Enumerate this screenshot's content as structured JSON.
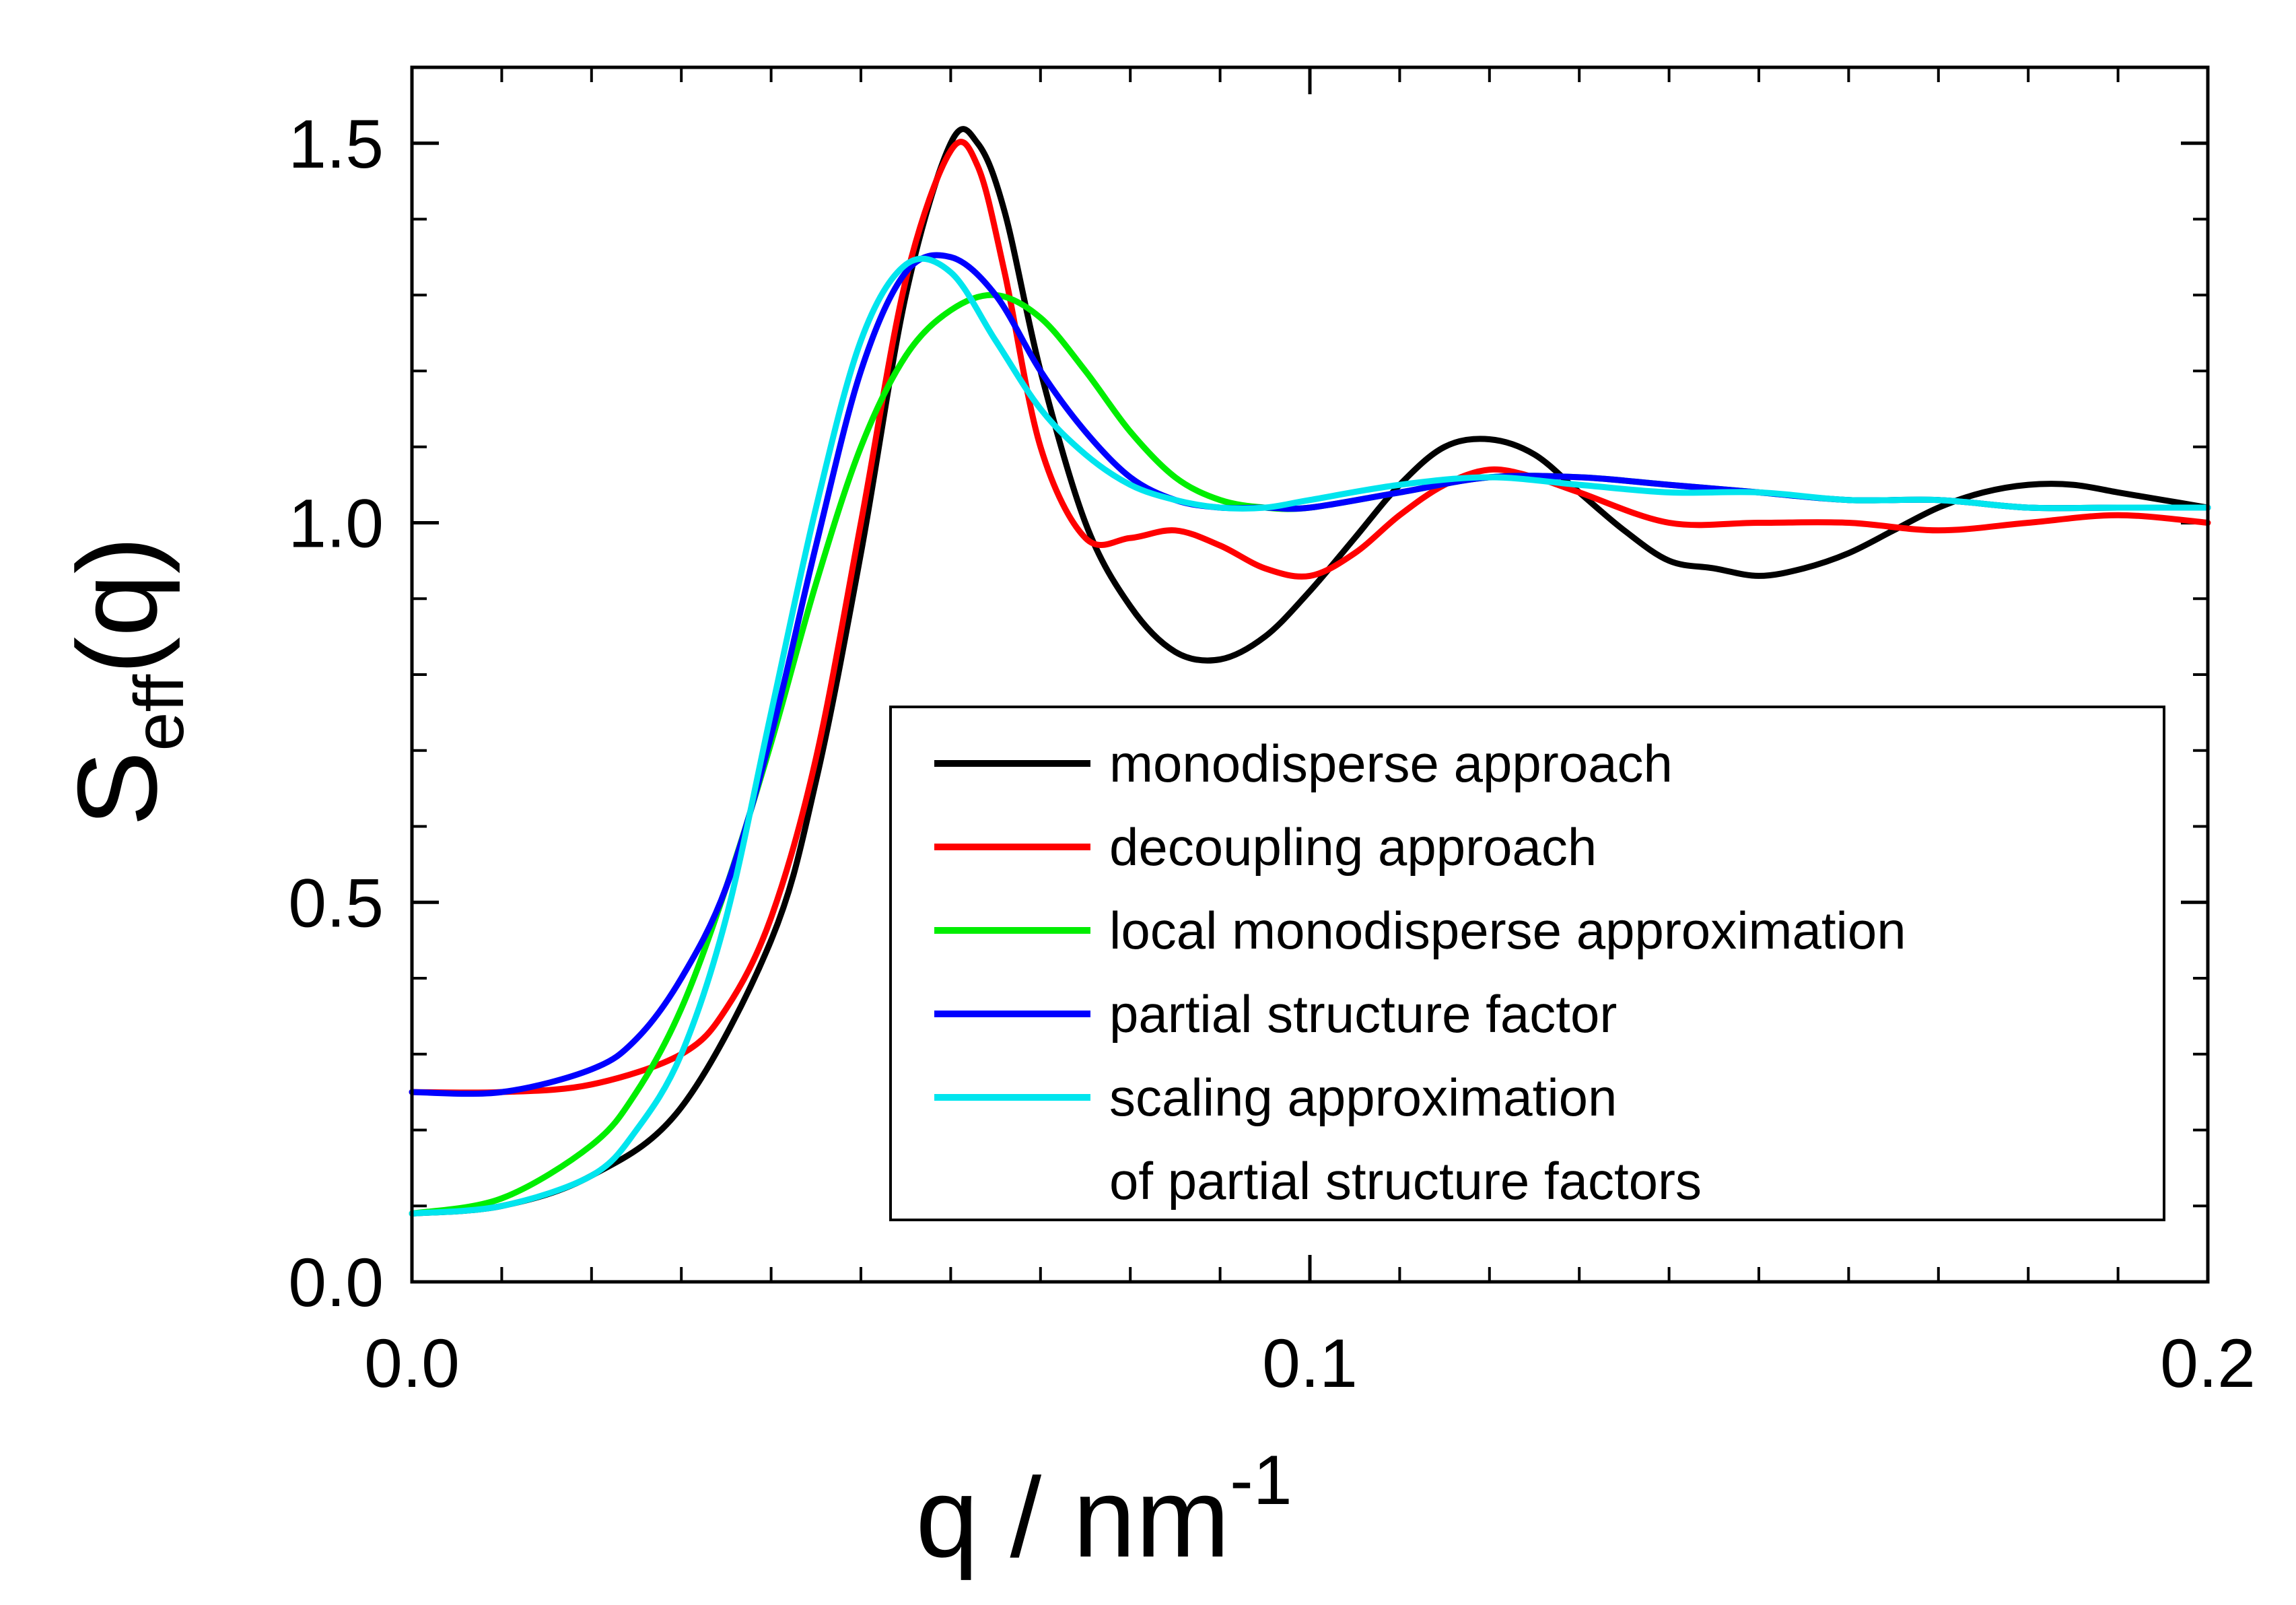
{
  "chart_data": {
    "type": "line",
    "xlabel": {
      "main": "q / nm",
      "superscript": "-1"
    },
    "ylabel": {
      "main": "S",
      "subscript": "eff",
      "suffix": "(q)"
    },
    "xlim": [
      0.0,
      0.2
    ],
    "ylim": [
      0.0,
      1.6
    ],
    "x_ticks": [
      0.0,
      0.1,
      0.2
    ],
    "x_tick_labels": [
      "0.0",
      "0.1",
      "0.2"
    ],
    "x_minor_step": 0.01,
    "y_ticks": [
      0.0,
      0.5,
      1.0,
      1.5
    ],
    "y_tick_labels": [
      "0.0",
      "0.5",
      "1.0",
      "1.5"
    ],
    "y_minor_step": 0.1,
    "grid": false,
    "legend_position": "lower-right",
    "series": [
      {
        "name": "monodisperse approach",
        "color": "#000000",
        "x": [
          0.0,
          0.01,
          0.02,
          0.03,
          0.04,
          0.045,
          0.05,
          0.055,
          0.06,
          0.063,
          0.066,
          0.07,
          0.075,
          0.08,
          0.085,
          0.09,
          0.095,
          0.1,
          0.105,
          0.11,
          0.115,
          0.12,
          0.125,
          0.13,
          0.135,
          0.14,
          0.145,
          0.15,
          0.155,
          0.16,
          0.165,
          0.17,
          0.175,
          0.18,
          0.185,
          0.19,
          0.195,
          0.2
        ],
        "y": [
          0.09,
          0.1,
          0.14,
          0.23,
          0.45,
          0.66,
          0.96,
          1.3,
          1.5,
          1.5,
          1.41,
          1.2,
          1.0,
          0.89,
          0.83,
          0.82,
          0.85,
          0.91,
          0.98,
          1.05,
          1.1,
          1.11,
          1.09,
          1.04,
          0.99,
          0.95,
          0.94,
          0.93,
          0.94,
          0.96,
          0.99,
          1.02,
          1.04,
          1.05,
          1.05,
          1.04,
          1.03,
          1.02
        ]
      },
      {
        "name": "decoupling approach",
        "color": "#ff0000",
        "x": [
          0.0,
          0.01,
          0.02,
          0.03,
          0.035,
          0.04,
          0.045,
          0.05,
          0.055,
          0.06,
          0.063,
          0.066,
          0.07,
          0.075,
          0.08,
          0.085,
          0.09,
          0.095,
          0.1,
          0.105,
          0.11,
          0.115,
          0.12,
          0.125,
          0.13,
          0.14,
          0.15,
          0.16,
          0.17,
          0.18,
          0.19,
          0.2
        ],
        "y": [
          0.25,
          0.25,
          0.26,
          0.3,
          0.36,
          0.48,
          0.69,
          1.0,
          1.32,
          1.49,
          1.47,
          1.33,
          1.1,
          0.98,
          0.98,
          0.99,
          0.97,
          0.94,
          0.93,
          0.96,
          1.01,
          1.05,
          1.07,
          1.06,
          1.04,
          1.0,
          1.0,
          1.0,
          0.99,
          1.0,
          1.01,
          1.0
        ]
      },
      {
        "name": "local monodisperse approximation",
        "color": "#00ee00",
        "x": [
          0.0,
          0.01,
          0.02,
          0.025,
          0.03,
          0.035,
          0.04,
          0.045,
          0.05,
          0.055,
          0.06,
          0.065,
          0.07,
          0.075,
          0.08,
          0.085,
          0.09,
          0.095,
          0.1,
          0.11,
          0.12,
          0.13,
          0.14,
          0.15,
          0.16,
          0.17,
          0.18,
          0.19,
          0.2
        ],
        "y": [
          0.09,
          0.11,
          0.18,
          0.25,
          0.36,
          0.52,
          0.71,
          0.92,
          1.1,
          1.22,
          1.28,
          1.3,
          1.27,
          1.2,
          1.12,
          1.06,
          1.03,
          1.02,
          1.02,
          1.04,
          1.06,
          1.06,
          1.05,
          1.04,
          1.03,
          1.03,
          1.02,
          1.02,
          1.02
        ]
      },
      {
        "name": "partial structure factor",
        "color": "#0000ff",
        "x": [
          0.0,
          0.01,
          0.02,
          0.025,
          0.03,
          0.035,
          0.04,
          0.045,
          0.05,
          0.055,
          0.06,
          0.065,
          0.07,
          0.075,
          0.08,
          0.085,
          0.09,
          0.095,
          0.1,
          0.11,
          0.12,
          0.13,
          0.14,
          0.15,
          0.16,
          0.17,
          0.18,
          0.19,
          0.2
        ],
        "y": [
          0.25,
          0.25,
          0.28,
          0.32,
          0.4,
          0.52,
          0.72,
          0.97,
          1.2,
          1.33,
          1.35,
          1.3,
          1.2,
          1.12,
          1.06,
          1.03,
          1.02,
          1.02,
          1.02,
          1.04,
          1.06,
          1.06,
          1.05,
          1.04,
          1.03,
          1.03,
          1.02,
          1.02,
          1.02
        ]
      },
      {
        "name": "scaling approximation",
        "name_line2": "of partial structure factors",
        "color": "#00e5ee",
        "x": [
          0.0,
          0.01,
          0.02,
          0.025,
          0.03,
          0.035,
          0.04,
          0.045,
          0.05,
          0.055,
          0.06,
          0.065,
          0.07,
          0.075,
          0.08,
          0.085,
          0.09,
          0.095,
          0.1,
          0.11,
          0.12,
          0.13,
          0.14,
          0.15,
          0.16,
          0.17,
          0.18,
          0.19,
          0.2
        ],
        "y": [
          0.09,
          0.1,
          0.14,
          0.2,
          0.3,
          0.48,
          0.75,
          1.02,
          1.24,
          1.34,
          1.33,
          1.24,
          1.15,
          1.09,
          1.05,
          1.03,
          1.02,
          1.02,
          1.03,
          1.05,
          1.06,
          1.05,
          1.04,
          1.04,
          1.03,
          1.03,
          1.02,
          1.02,
          1.02
        ]
      }
    ]
  }
}
